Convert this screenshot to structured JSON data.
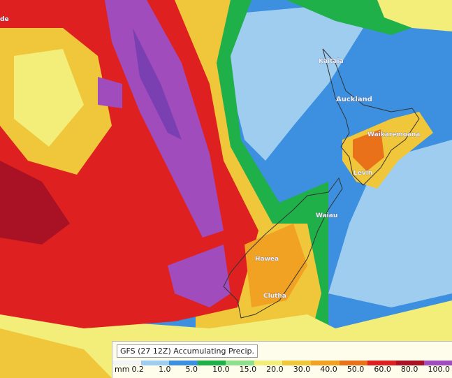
{
  "places": [
    {
      "name": "de"
    },
    {
      "name": "Kaitaia"
    },
    {
      "name": "Auckland"
    },
    {
      "name": "Waikaremoana"
    },
    {
      "name": "Levin"
    },
    {
      "name": "Waiau"
    },
    {
      "name": "Hawea"
    },
    {
      "name": "Clutha"
    }
  ],
  "legend": {
    "title": "GFS (27 12Z) Accumulating Precip.",
    "unit": "mm",
    "items": [
      {
        "label": "0.2",
        "color": "#f4f4f4"
      },
      {
        "label": "1.0",
        "color": "#9fcdf0"
      },
      {
        "label": "5.0",
        "color": "#3d8fe0"
      },
      {
        "label": "10.0",
        "color": "#20b04a"
      },
      {
        "label": "15.0",
        "color": "#8fe08c"
      },
      {
        "label": "20.0",
        "color": "#f3ee7a"
      },
      {
        "label": "30.0",
        "color": "#f0c63a"
      },
      {
        "label": "40.0",
        "color": "#f2a222"
      },
      {
        "label": "50.0",
        "color": "#e8711a"
      },
      {
        "label": "60.0",
        "color": "#df2020"
      },
      {
        "label": "80.0",
        "color": "#a81224"
      },
      {
        "label": "100.0",
        "color": "#a04cbc"
      }
    ]
  }
}
